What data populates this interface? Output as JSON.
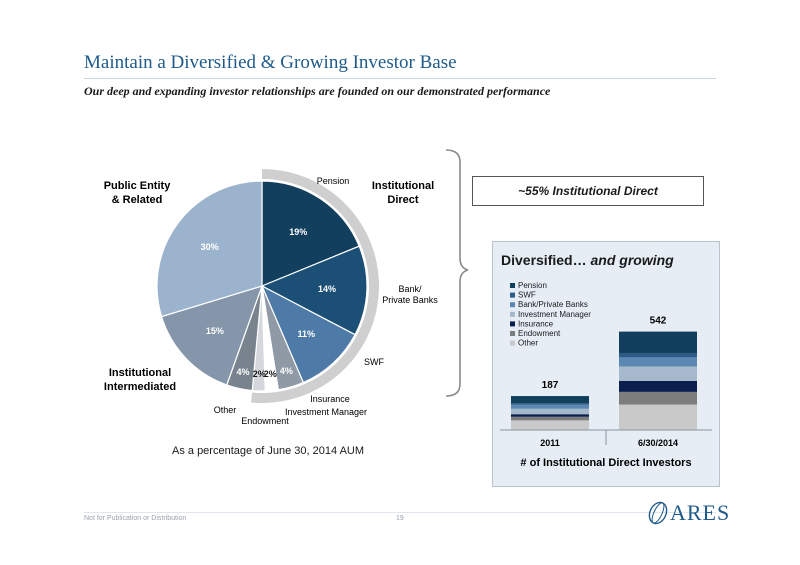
{
  "header": {
    "title": "Maintain a Diversified & Growing Investor Base",
    "subtitle": "Our deep and expanding investor relationships are founded on our demonstrated performance"
  },
  "pie_labels": {
    "public_entity_line1": "Public Entity",
    "public_entity_line2": "& Related",
    "institutional_direct_line1": "Institutional",
    "institutional_direct_line2": "Direct",
    "institutional_intermediated_line1": "Institutional",
    "institutional_intermediated_line2": "Intermediated",
    "pension": "Pension",
    "bank_line1": "Bank/",
    "bank_line2": "Private Banks",
    "swf": "SWF",
    "insurance": "Insurance",
    "investment_manager": "Investment Manager",
    "endowment": "Endowment",
    "other": "Other"
  },
  "aum_note": "As a percentage of June 30, 2014 AUM",
  "callout": "~55% Institutional Direct",
  "panel": {
    "title_plain": "Diversified… ",
    "title_italic": "and growing",
    "x_axis_title": "# of Institutional Direct Investors"
  },
  "footer": {
    "left": "Not for Publication or Distribution",
    "page": "19",
    "logo": "ARES"
  },
  "chart_data": [
    {
      "type": "pie",
      "slices": [
        {
          "label": "Pension",
          "value": 19,
          "text": "19%",
          "color": "#123f5e"
        },
        {
          "label": "Bank/Private Banks",
          "value": 14,
          "text": "14%",
          "color": "#1c4f76"
        },
        {
          "label": "SWF",
          "value": 11,
          "text": "11%",
          "color": "#4d7aa6"
        },
        {
          "label": "Insurance",
          "value": 4,
          "text": "4%",
          "color": "#8f9aa6"
        },
        {
          "label": "Investment Manager",
          "value": 2,
          "text": "2%",
          "color": "#ffffff"
        },
        {
          "label": "Endowment",
          "value": 2,
          "text": "2%",
          "color": "#d4d8dc"
        },
        {
          "label": "Other",
          "value": 4,
          "text": "4%",
          "color": "#78838e"
        },
        {
          "label": "Institutional Intermediated",
          "value": 15,
          "text": "15%",
          "color": "#8596aa"
        },
        {
          "label": "Public Entity & Related",
          "value": 30,
          "text": "30%",
          "color": "#9cb3ce"
        }
      ]
    },
    {
      "type": "bar",
      "stacked": true,
      "categories": [
        "2011",
        "6/30/2014"
      ],
      "totals": [
        187,
        542
      ],
      "series": [
        {
          "name": "Pension",
          "values": [
            40,
            120
          ],
          "color": "#123f5e"
        },
        {
          "name": "SWF",
          "values": [
            8,
            22
          ],
          "color": "#2b5b86"
        },
        {
          "name": "Bank/Private Banks",
          "values": [
            22,
            50
          ],
          "color": "#5b87b3"
        },
        {
          "name": "Investment Manager",
          "values": [
            30,
            80
          ],
          "color": "#a6b8cc"
        },
        {
          "name": "Insurance",
          "values": [
            14,
            60
          ],
          "color": "#0b1f4e"
        },
        {
          "name": "Endowment",
          "values": [
            20,
            70
          ],
          "color": "#7d7d7d"
        },
        {
          "name": "Other",
          "values": [
            53,
            140
          ],
          "color": "#c9c9c9"
        }
      ],
      "ylim": [
        0,
        650
      ]
    }
  ]
}
